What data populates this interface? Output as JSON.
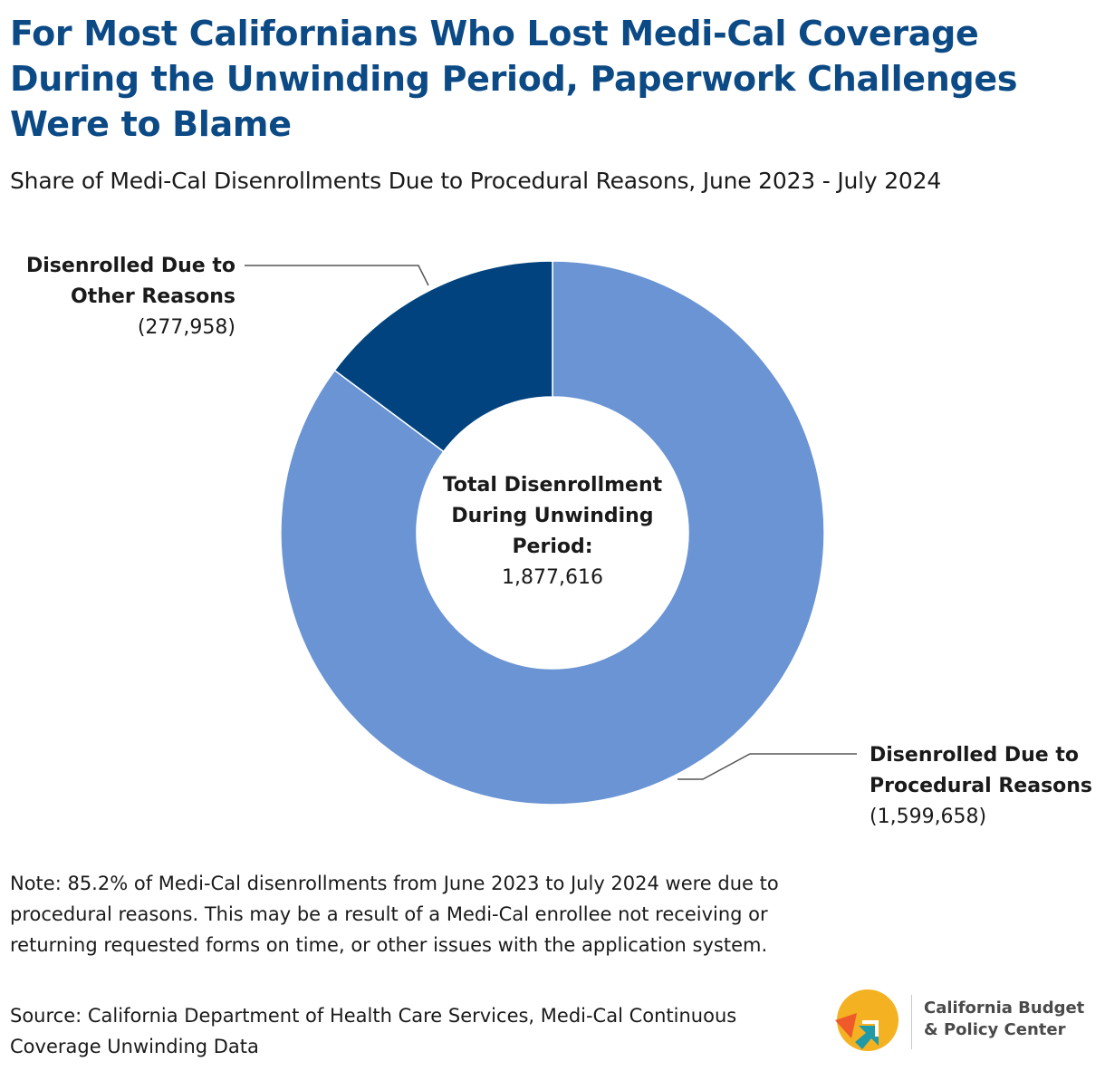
{
  "title": "For Most Californians Who Lost Medi-Cal Coverage During the Unwinding Period, Paperwork Challenges Were to Blame",
  "subtitle": "Share of Medi-Cal Disenrollments Due to Procedural Reasons, June 2023 - July 2024",
  "chart_data": {
    "type": "pie",
    "variant": "donut",
    "title": "Share of Medi-Cal Disenrollments Due to Procedural Reasons, June 2023 - July 2024",
    "slices": [
      {
        "name": "Disenrolled Due to Procedural Reasons",
        "value": 1599658,
        "display": "(1,599,658)",
        "color": "#6a94d4"
      },
      {
        "name": "Disenrolled Due to Other Reasons",
        "value": 277958,
        "display": "(277,958)",
        "color": "#01437e"
      }
    ],
    "center": {
      "label": "Total Disenrollment During Unwinding Period:",
      "value": "1,877,616"
    }
  },
  "labels": {
    "other_line1": "Disenrolled Due to",
    "other_line2": "Other Reasons",
    "other_value": "(277,958)",
    "proc_line1": "Disenrolled Due to",
    "proc_line2": "Procedural Reasons",
    "proc_value": "(1,599,658)",
    "center_line1": "Total Disenrollment",
    "center_line2": "During Unwinding",
    "center_line3": "Period:",
    "center_value": "1,877,616"
  },
  "note": "Note: 85.2% of Medi-Cal disenrollments from June 2023 to July 2024 were due to procedural reasons. This may be a result of a Medi-Cal enrollee not receiving or returning requested forms on time, or other issues with the application system.",
  "source": "Source: California Department of Health Care Services, Medi-Cal Continuous Coverage Unwinding Data",
  "logo": {
    "line1": "California Budget",
    "line2": "& Policy Center",
    "colors": [
      "#f4b223",
      "#ee5a2a",
      "#1f9aa6"
    ]
  }
}
